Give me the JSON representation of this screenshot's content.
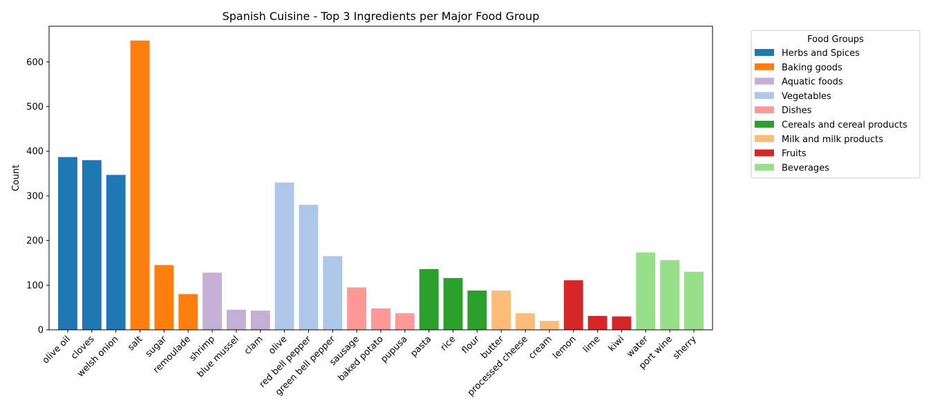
{
  "chart_data": {
    "type": "bar",
    "title": "Spanish Cuisine - Top 3 Ingredients per Major Food Group",
    "xlabel": "",
    "ylabel": "Count",
    "ylim": [
      0,
      680
    ],
    "yticks": [
      0,
      100,
      200,
      300,
      400,
      500,
      600
    ],
    "grid": false,
    "legend": {
      "title": "Food Groups",
      "placement": "outside-right",
      "entries": [
        {
          "name": "Herbs and Spices",
          "color": "#1f77b4"
        },
        {
          "name": "Baking goods",
          "color": "#ff7f0e"
        },
        {
          "name": "Aquatic foods",
          "color": "#c5b0d5"
        },
        {
          "name": "Vegetables",
          "color": "#aec7e8"
        },
        {
          "name": "Dishes",
          "color": "#ff9896"
        },
        {
          "name": "Cereals and cereal products",
          "color": "#2ca02c"
        },
        {
          "name": "Milk and milk products",
          "color": "#ffbb78"
        },
        {
          "name": "Fruits",
          "color": "#d62728"
        },
        {
          "name": "Beverages",
          "color": "#98df8a"
        }
      ]
    },
    "categories": [
      "olive oil",
      "cloves",
      "welsh onion",
      "salt",
      "sugar",
      "remoulade",
      "shrimp",
      "blue mussel",
      "clam",
      "olive",
      "red bell pepper",
      "green bell pepper",
      "sausage",
      "baked potato",
      "pupusa",
      "pasta",
      "rice",
      "flour",
      "butter",
      "processed cheese",
      "cream",
      "lemon",
      "lime",
      "kiwi",
      "water",
      "port wine",
      "sherry"
    ],
    "values": [
      387,
      380,
      347,
      648,
      145,
      80,
      128,
      45,
      43,
      330,
      280,
      165,
      95,
      48,
      37,
      136,
      116,
      88,
      88,
      37,
      20,
      111,
      31,
      30,
      173,
      156,
      130
    ],
    "groups": [
      "Herbs and Spices",
      "Herbs and Spices",
      "Herbs and Spices",
      "Baking goods",
      "Baking goods",
      "Baking goods",
      "Aquatic foods",
      "Aquatic foods",
      "Aquatic foods",
      "Vegetables",
      "Vegetables",
      "Vegetables",
      "Dishes",
      "Dishes",
      "Dishes",
      "Cereals and cereal products",
      "Cereals and cereal products",
      "Cereals and cereal products",
      "Milk and milk products",
      "Milk and milk products",
      "Milk and milk products",
      "Fruits",
      "Fruits",
      "Fruits",
      "Beverages",
      "Beverages",
      "Beverages"
    ]
  }
}
